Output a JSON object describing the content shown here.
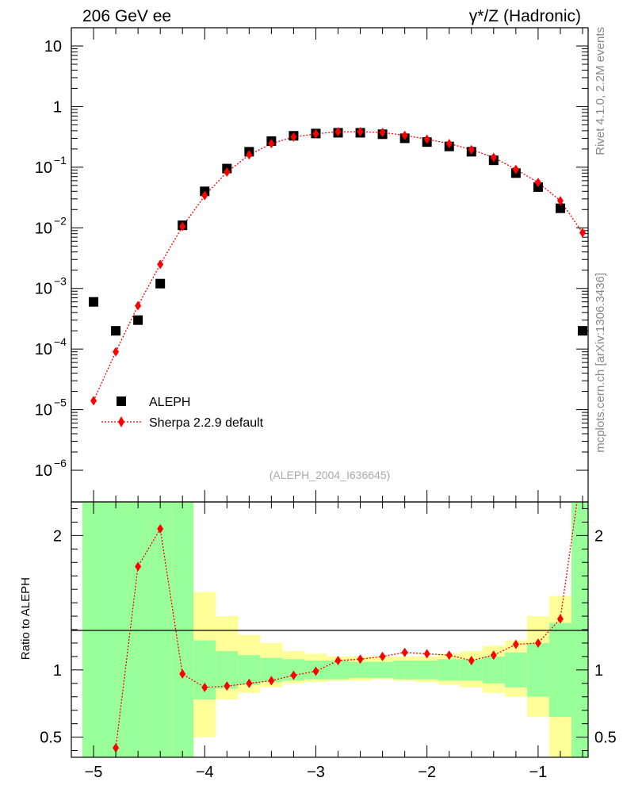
{
  "header": {
    "left_title": "206 GeV ee",
    "right_title": "γ*/Z (Hadronic)"
  },
  "side": {
    "rivet": "Rivet 4.1.0,  2.2M events",
    "mcplots": "mcplots.cern.ch [arXiv:1306.3436]"
  },
  "chart_data": [
    {
      "type": "scatter",
      "panel": "main",
      "yscale": "log",
      "xlim": [
        -5.2,
        -0.55
      ],
      "ylim": [
        3e-07,
        20
      ],
      "y_ticks": [
        {
          "v": 10,
          "label": "10"
        },
        {
          "v": 1,
          "label": "1"
        },
        {
          "v": 0.1,
          "label": "10",
          "exp": "−1"
        },
        {
          "v": 0.01,
          "label": "10",
          "exp": "−2"
        },
        {
          "v": 0.001,
          "label": "10",
          "exp": "−3"
        },
        {
          "v": 0.0001,
          "label": "10",
          "exp": "−4"
        },
        {
          "v": 1e-05,
          "label": "10",
          "exp": "−5"
        },
        {
          "v": 1e-06,
          "label": "10",
          "exp": "−6"
        }
      ],
      "annotation": "(ALEPH_2004_I636645)",
      "legend": [
        {
          "name": "ALEPH",
          "marker": "square",
          "color": "#000000"
        },
        {
          "name": "Sherpa 2.2.9 default",
          "marker": "diamond",
          "color": "#ff0000"
        }
      ],
      "series": [
        {
          "name": "ALEPH",
          "x": [
            -5.0,
            -4.8,
            -4.6,
            -4.4,
            -4.2,
            -4.0,
            -3.8,
            -3.6,
            -3.4,
            -3.2,
            -3.0,
            -2.8,
            -2.6,
            -2.4,
            -2.2,
            -2.0,
            -1.8,
            -1.6,
            -1.4,
            -1.2,
            -1.0,
            -0.8,
            -0.6
          ],
          "y": [
            0.0006,
            0.0002,
            0.0003,
            0.0012,
            0.011,
            0.04,
            0.095,
            0.18,
            0.27,
            0.33,
            0.36,
            0.37,
            0.37,
            0.35,
            0.3,
            0.26,
            0.22,
            0.18,
            0.13,
            0.08,
            0.047,
            0.021,
            0.0002
          ]
        },
        {
          "name": "Sherpa 2.2.9 default",
          "x": [
            -5.0,
            -4.8,
            -4.6,
            -4.4,
            -4.2,
            -4.0,
            -3.8,
            -3.6,
            -3.4,
            -3.2,
            -3.0,
            -2.8,
            -2.6,
            -2.4,
            -2.2,
            -2.0,
            -1.8,
            -1.6,
            -1.4,
            -1.2,
            -1.0,
            -0.8,
            -0.6
          ],
          "y": [
            1.4e-05,
            9e-05,
            0.00052,
            0.0025,
            0.0105,
            0.034,
            0.083,
            0.16,
            0.245,
            0.315,
            0.355,
            0.385,
            0.385,
            0.375,
            0.335,
            0.29,
            0.245,
            0.195,
            0.145,
            0.092,
            0.056,
            0.028,
            0.0083
          ]
        }
      ]
    },
    {
      "type": "scatter",
      "panel": "ratio",
      "ylabel": "Ratio to ALEPH",
      "xlim": [
        -5.2,
        -0.55
      ],
      "ylim": [
        0.35,
        2.25
      ],
      "y_ticks": [
        0.5,
        1,
        2
      ],
      "y_tick_labels": [
        "0.5",
        "1",
        "2"
      ],
      "x_ticks": [
        -5,
        -4,
        -3,
        -2,
        -1
      ],
      "x_tick_labels": [
        "−5",
        "−4",
        "−3",
        "−2",
        "−1"
      ],
      "band_edges": [
        -5.1,
        -4.9,
        -4.7,
        -4.5,
        -4.3,
        -4.1,
        -3.9,
        -3.7,
        -3.5,
        -3.3,
        -3.1,
        -2.9,
        -2.7,
        -2.5,
        -2.3,
        -2.1,
        -1.9,
        -1.7,
        -1.5,
        -1.3,
        -1.1,
        -0.9,
        -0.7,
        -0.5
      ],
      "band_inner_low": [
        0.35,
        0.35,
        0.35,
        0.35,
        0.35,
        0.78,
        0.86,
        0.89,
        0.91,
        0.92,
        0.93,
        0.93,
        0.94,
        0.94,
        0.93,
        0.93,
        0.92,
        0.92,
        0.9,
        0.87,
        0.8,
        0.65,
        0.35,
        0.35
      ],
      "band_inner_high": [
        2.25,
        2.25,
        2.25,
        2.25,
        2.25,
        1.22,
        1.14,
        1.11,
        1.09,
        1.08,
        1.07,
        1.07,
        1.06,
        1.06,
        1.07,
        1.07,
        1.08,
        1.08,
        1.1,
        1.13,
        1.2,
        1.35,
        2.25,
        2.25
      ],
      "band_outer_low": [
        0.35,
        0.35,
        0.35,
        0.35,
        0.35,
        0.5,
        0.78,
        0.83,
        0.87,
        0.9,
        0.91,
        0.92,
        0.92,
        0.93,
        0.92,
        0.91,
        0.89,
        0.87,
        0.83,
        0.8,
        0.65,
        0.35,
        0.35,
        0.35
      ],
      "band_outer_high": [
        2.25,
        2.25,
        2.25,
        2.25,
        2.25,
        1.58,
        1.4,
        1.26,
        1.2,
        1.14,
        1.12,
        1.1,
        1.1,
        1.1,
        1.1,
        1.1,
        1.12,
        1.14,
        1.18,
        1.22,
        1.4,
        1.55,
        2.25,
        2.25
      ],
      "band_colors": {
        "inner": "#99ff99",
        "outer": "#ffff99"
      },
      "series": [
        {
          "name": "Sherpa 2.2.9 default",
          "x": [
            -4.8,
            -4.6,
            -4.4,
            -4.2,
            -4.0,
            -3.8,
            -3.6,
            -3.4,
            -3.2,
            -3.0,
            -2.8,
            -2.6,
            -2.4,
            -2.2,
            -2.0,
            -1.8,
            -1.6,
            -1.4,
            -1.2,
            -1.0,
            -0.8
          ],
          "y": [
            0.42,
            1.77,
            2.05,
            0.97,
            0.87,
            0.88,
            0.9,
            0.92,
            0.96,
            0.99,
            1.07,
            1.08,
            1.1,
            1.13,
            1.12,
            1.11,
            1.07,
            1.11,
            1.19,
            1.2,
            1.38
          ],
          "y_beyond_top_at_x": -0.65
        }
      ]
    }
  ]
}
